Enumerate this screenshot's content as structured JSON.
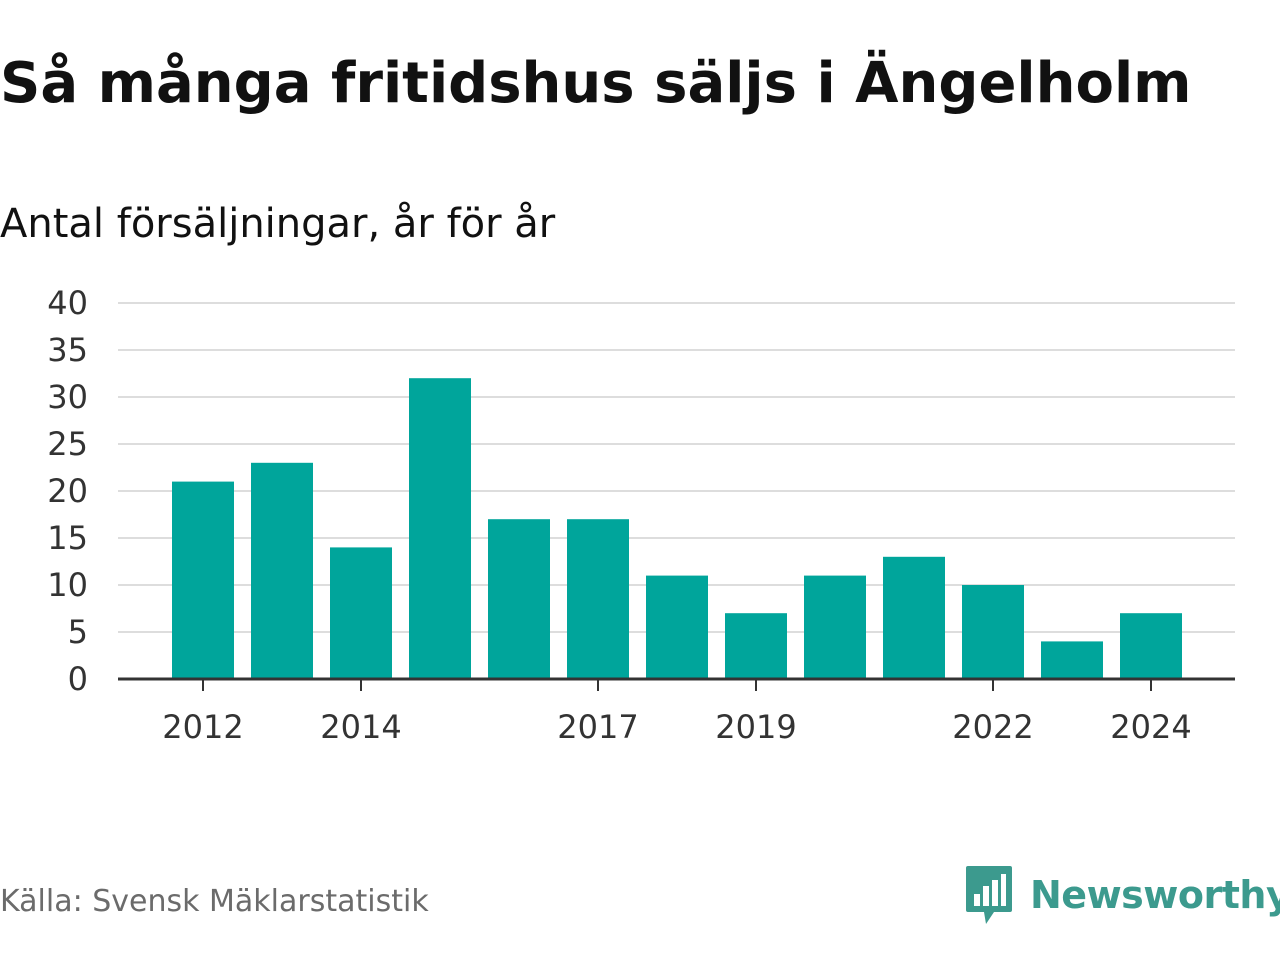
{
  "chart_data": {
    "type": "bar",
    "title": "Så många fritidshus säljs i Ängelholm",
    "subtitle": "Antal försäljningar, år för år",
    "categories": [
      "2012",
      "2013",
      "2014",
      "2015",
      "2016",
      "2017",
      "2018",
      "2019",
      "2020",
      "2021",
      "2022",
      "2023",
      "2024"
    ],
    "values": [
      21,
      23,
      14,
      32,
      17,
      17,
      11,
      7,
      11,
      13,
      10,
      4,
      7
    ],
    "x_tick_labels": [
      "2012",
      "2014",
      "2017",
      "2019",
      "2022",
      "2024"
    ],
    "y_ticks": [
      "0",
      "5",
      "10",
      "15",
      "20",
      "25",
      "30",
      "35",
      "40"
    ],
    "ylim": [
      0,
      40
    ],
    "xlabel": "",
    "ylabel": "",
    "grid": true,
    "bar_color": "#00a59b",
    "grid_color": "#dddddd",
    "axis_color": "#333333"
  },
  "footer": {
    "source": "Källa: Svensk Mäklarstatistik",
    "brand": "Newsworthy",
    "brand_icon": "bar-chart-speech-bubble-icon",
    "brand_color": "#3c9a8e"
  }
}
